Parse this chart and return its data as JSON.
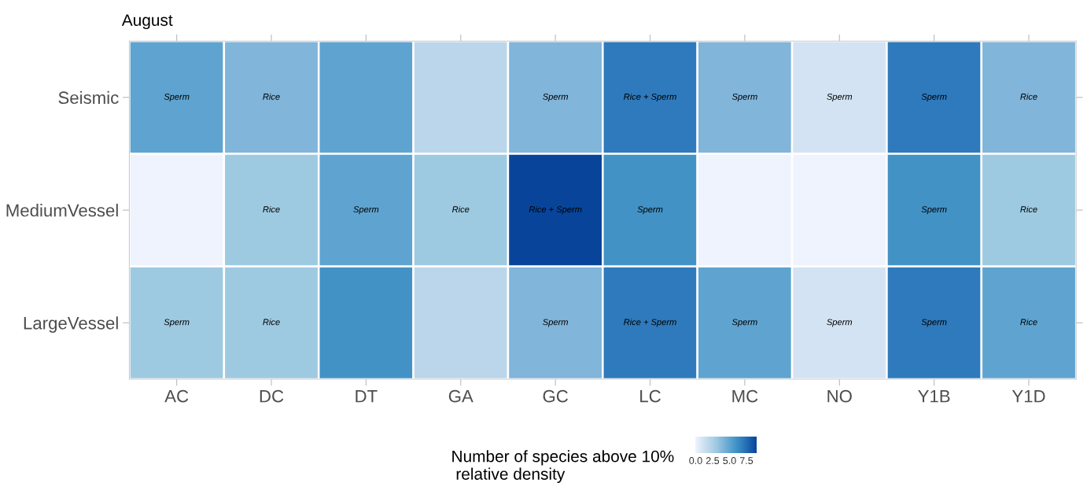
{
  "chart_data": {
    "type": "heatmap",
    "title": "August",
    "clabel": "Number of species above 10%\n relative density",
    "categories": [
      "AC",
      "DC",
      "DT",
      "GA",
      "GC",
      "LC",
      "MC",
      "NO",
      "Y1B",
      "Y1D"
    ],
    "y_categories": [
      "Seismic",
      "MediumVessel",
      "LargeVessel"
    ],
    "cells": [
      [
        5,
        4,
        5,
        2,
        4,
        7,
        4,
        1,
        7,
        4
      ],
      [
        0,
        3,
        5,
        3,
        9,
        6,
        0,
        0,
        6,
        3
      ],
      [
        3,
        3,
        6,
        2,
        4,
        7,
        5,
        1,
        7,
        5
      ]
    ],
    "cell_labels": [
      [
        "Sperm",
        "Rice",
        null,
        null,
        "Sperm",
        "Rice + Sperm",
        "Sperm",
        "Sperm",
        "Sperm",
        "Rice"
      ],
      [
        null,
        "Rice",
        "Sperm",
        "Rice",
        "Rice + Sperm",
        "Sperm",
        null,
        null,
        "Sperm",
        "Rice"
      ],
      [
        "Sperm",
        "Rice",
        null,
        null,
        "Sperm",
        "Rice + Sperm",
        "Sperm",
        "Sperm",
        "Sperm",
        "Rice"
      ]
    ],
    "colors": [
      "#eef3fd",
      "#d3e3f3",
      "#bad6ea",
      "#9ecae1",
      "#81b5da",
      "#5fa4d0",
      "#4292c6",
      "#2e7bbc",
      "#1a5fab",
      "#08459a"
    ],
    "clim": [
      0,
      9
    ],
    "cticks": [
      {
        "value": 0,
        "label": "0.0"
      },
      {
        "value": 2.5,
        "label": "2.5"
      },
      {
        "value": 5,
        "label": "5.0"
      },
      {
        "value": 7.5,
        "label": "7.5"
      }
    ]
  }
}
